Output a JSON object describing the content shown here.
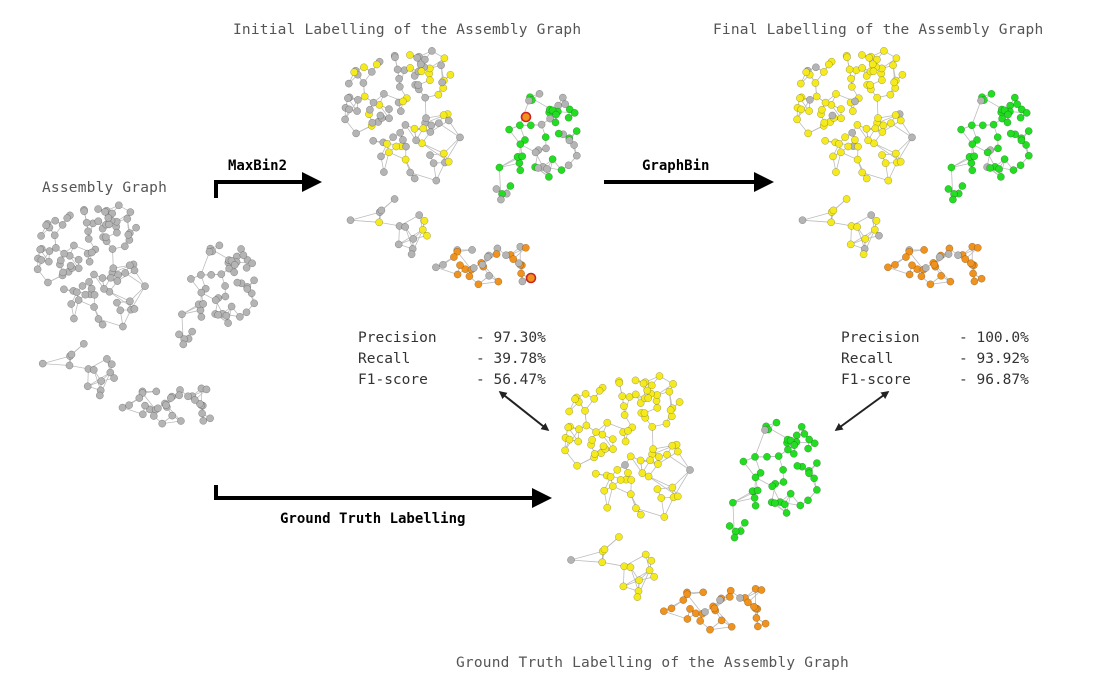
{
  "titles": {
    "assembly": "Assembly Graph",
    "initial": "Initial Labelling of the Assembly Graph",
    "final": "Final Labelling of the Assembly Graph",
    "ground": "Ground Truth Labelling of the Assembly Graph"
  },
  "flow_labels": {
    "maxbin": "MaxBin2",
    "graphbin": "GraphBin",
    "ground": "Ground Truth Labelling"
  },
  "metrics": {
    "initial": [
      {
        "name": "Precision",
        "value": "- 97.30%"
      },
      {
        "name": "Recall",
        "value": "- 39.78%"
      },
      {
        "name": "F1-score",
        "value": "- 56.47%"
      }
    ],
    "final": [
      {
        "name": "Precision",
        "value": "- 100.0%"
      },
      {
        "name": "Recall",
        "value": "- 93.92%"
      },
      {
        "name": "F1-score",
        "value": "- 96.87%"
      }
    ]
  },
  "colors": {
    "unlabelled": "#b4b4b4",
    "bin_yellow": "#f5ea1e",
    "bin_green": "#22dd22",
    "bin_orange": "#f0921e",
    "misbinned_ring": "#cc2222",
    "edge": "#bdbdbd",
    "arrow": "#000000"
  }
}
